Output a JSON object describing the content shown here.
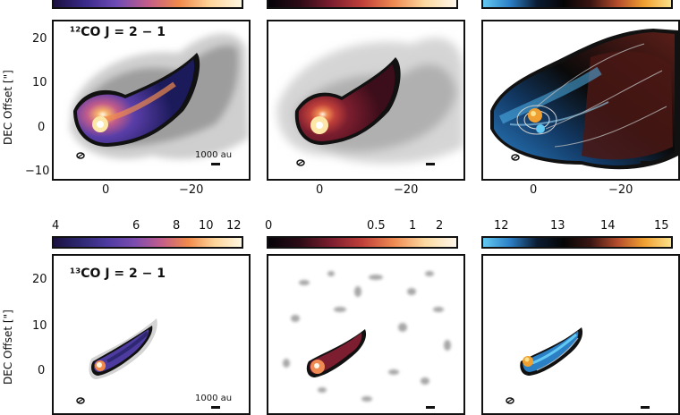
{
  "rows": [
    {
      "molecule_label": "¹²CO J = 2 − 1",
      "scale_bar_label": "1000 au",
      "y_axis_label": "DEC Offset [\"]",
      "y_ticks": [
        "20",
        "10",
        "0",
        "−10"
      ],
      "x_ticks": [
        "0",
        "−20"
      ],
      "colorbars": [
        {
          "ticks": []
        },
        {
          "ticks": []
        },
        {
          "ticks": []
        }
      ]
    },
    {
      "molecule_label": "¹³CO J = 2 − 1",
      "scale_bar_label": "1000 au",
      "y_axis_label": "DEC Offset [\"]",
      "y_ticks": [
        "20",
        "10",
        "0"
      ],
      "x_ticks": [],
      "colorbars": [
        {
          "ticks": [
            "4",
            "6",
            "8",
            "10",
            "12"
          ]
        },
        {
          "ticks": [
            "0",
            "0.5",
            "1",
            "2"
          ]
        },
        {
          "ticks": [
            "12",
            "13",
            "14",
            "15"
          ]
        }
      ]
    }
  ],
  "colors": {
    "frame": "#111111",
    "peak": "#fde7a6",
    "warm": "#f08a4b",
    "violet": "#5a3ea8",
    "crimson": "#7c1e2f",
    "blue_velocity": "#49b6e8",
    "orange_velocity": "#f0a030"
  }
}
